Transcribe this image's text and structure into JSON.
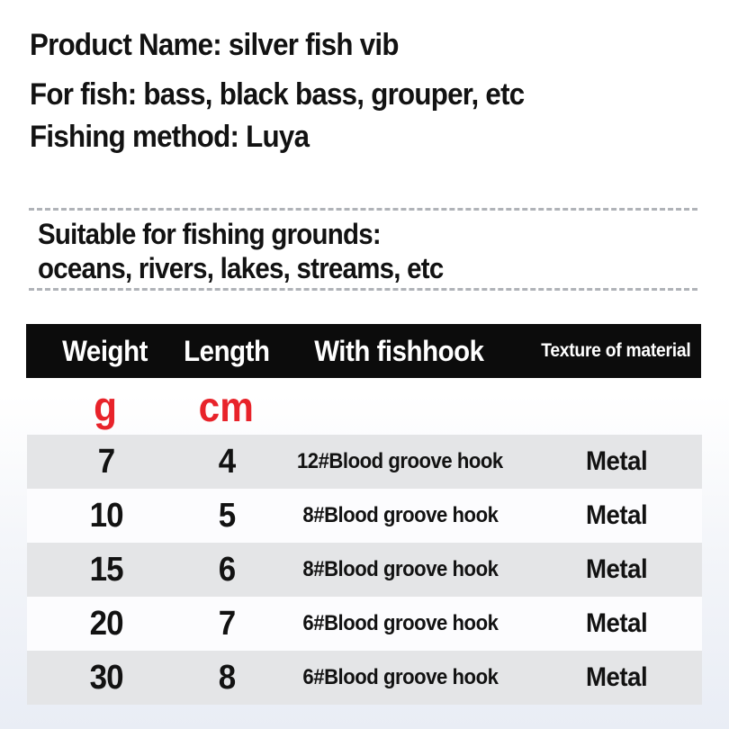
{
  "product_info": {
    "product_name": "Product Name: silver fish vib",
    "for_fish": "For fish: bass, black bass, grouper, etc",
    "fishing_method": "Fishing method: Luya"
  },
  "fishing_grounds": {
    "line1": "Suitable for fishing grounds:",
    "line2": "oceans, rivers, lakes, streams, etc"
  },
  "spec_table": {
    "headers": [
      "Weight",
      "Length",
      "With fishhook",
      "Texture of material"
    ],
    "units": {
      "weight": "g",
      "length": "cm"
    },
    "rows": [
      {
        "weight": "7",
        "length": "4",
        "hook": "12#Blood groove hook",
        "material": "Metal"
      },
      {
        "weight": "10",
        "length": "5",
        "hook": "8#Blood groove hook",
        "material": "Metal"
      },
      {
        "weight": "15",
        "length": "6",
        "hook": "8#Blood groove hook",
        "material": "Metal"
      },
      {
        "weight": "20",
        "length": "7",
        "hook": "6#Blood groove hook",
        "material": "Metal"
      },
      {
        "weight": "30",
        "length": "8",
        "hook": "6#Blood groove hook",
        "material": "Metal"
      }
    ],
    "colors": {
      "header_background": "#0c0c0c",
      "header_text": "#ffffff",
      "unit_accent_red": "#e8232a",
      "alt_row_gray": "#e4e5e7",
      "dashed_divider_gray": "#b0b3b8",
      "body_text": "#121212",
      "page_bottom_tint": "#e9edf5"
    }
  }
}
